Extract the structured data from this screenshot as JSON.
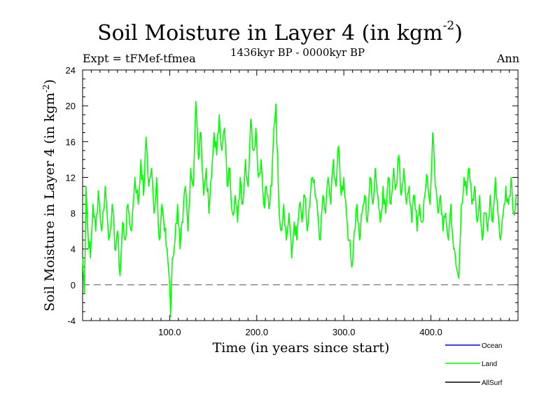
{
  "header": {
    "title": "Soil Moisture in Layer 4 (in kgm",
    "title_exp": "-2",
    "title_close": ")",
    "subtitle": "1436kyr BP - 0000kyr BP",
    "expt": "Expt = tFMef-tfmea",
    "season": "Ann"
  },
  "chart_data": {
    "type": "line",
    "title": "Soil Moisture in Layer 4 (in kgm-2)",
    "xlabel": "Time (in years since start)",
    "ylabel": "Soil Moisture in Layer 4 (in kgm",
    "ylabel_exp": "-2",
    "ylabel_close": ")",
    "xlim": [
      0,
      500
    ],
    "ylim": [
      -4,
      24
    ],
    "xticks": [
      100,
      200,
      300,
      400
    ],
    "xtick_labels": [
      "100.0",
      "200.0",
      "300.0",
      "400.0"
    ],
    "yticks": [
      -4,
      0,
      4,
      8,
      12,
      16,
      20,
      24
    ],
    "ytick_labels": [
      "-4",
      "0",
      "4",
      "8",
      "12",
      "16",
      "20",
      "24"
    ],
    "zero_line": 0,
    "series": [
      {
        "name": "Ocean",
        "color": "#0000ff",
        "values": []
      },
      {
        "name": "Land",
        "color": "#00ff00",
        "knots": [
          [
            0,
            3
          ],
          [
            2,
            -1
          ],
          [
            4,
            11
          ],
          [
            6,
            6
          ],
          [
            9,
            3
          ],
          [
            12,
            9
          ],
          [
            15,
            6
          ],
          [
            18,
            10.5
          ],
          [
            22,
            6
          ],
          [
            26,
            11
          ],
          [
            30,
            5
          ],
          [
            34,
            9
          ],
          [
            37,
            4
          ],
          [
            40,
            6
          ],
          [
            43,
            1
          ],
          [
            46,
            7
          ],
          [
            49,
            5
          ],
          [
            52,
            9
          ],
          [
            56,
            6
          ],
          [
            60,
            12
          ],
          [
            64,
            9
          ],
          [
            67,
            14
          ],
          [
            70,
            10
          ],
          [
            73,
            16.5
          ],
          [
            76,
            11
          ],
          [
            79,
            13
          ],
          [
            82,
            8
          ],
          [
            85,
            12
          ],
          [
            88,
            5
          ],
          [
            91,
            9
          ],
          [
            94,
            6
          ],
          [
            97,
            4
          ],
          [
            100,
            0
          ],
          [
            101,
            -3.6
          ],
          [
            103,
            3
          ],
          [
            106,
            5
          ],
          [
            109,
            9
          ],
          [
            112,
            4
          ],
          [
            115,
            7
          ],
          [
            118,
            11
          ],
          [
            121,
            6
          ],
          [
            124,
            13
          ],
          [
            127,
            11
          ],
          [
            130,
            20.5
          ],
          [
            133,
            14
          ],
          [
            136,
            17
          ],
          [
            139,
            10
          ],
          [
            142,
            13
          ],
          [
            145,
            8
          ],
          [
            148,
            12
          ],
          [
            151,
            17
          ],
          [
            154,
            14.5
          ],
          [
            157,
            19
          ],
          [
            160,
            15
          ],
          [
            163,
            17.5
          ],
          [
            166,
            11
          ],
          [
            169,
            13
          ],
          [
            172,
            8
          ],
          [
            175,
            10
          ],
          [
            178,
            7
          ],
          [
            181,
            12
          ],
          [
            184,
            9
          ],
          [
            187,
            14
          ],
          [
            190,
            11
          ],
          [
            193,
            18.5
          ],
          [
            196,
            15
          ],
          [
            199,
            17.5
          ],
          [
            202,
            12
          ],
          [
            205,
            14
          ],
          [
            208,
            9
          ],
          [
            211,
            11
          ],
          [
            214,
            8.5
          ],
          [
            217,
            11
          ],
          [
            220,
            18
          ],
          [
            222,
            20.2
          ],
          [
            225,
            10
          ],
          [
            228,
            6
          ],
          [
            231,
            9
          ],
          [
            234,
            5
          ],
          [
            237,
            8
          ],
          [
            240,
            3
          ],
          [
            243,
            7
          ],
          [
            246,
            5
          ],
          [
            249,
            9
          ],
          [
            252,
            7
          ],
          [
            255,
            10
          ],
          [
            258,
            6
          ],
          [
            261,
            9
          ],
          [
            264,
            12
          ],
          [
            267,
            10
          ],
          [
            270,
            8
          ],
          [
            273,
            5
          ],
          [
            276,
            10
          ],
          [
            279,
            8
          ],
          [
            282,
            12
          ],
          [
            285,
            9
          ],
          [
            288,
            14
          ],
          [
            291,
            11
          ],
          [
            294,
            15.5
          ],
          [
            297,
            10
          ],
          [
            300,
            12
          ],
          [
            303,
            8
          ],
          [
            306,
            5
          ],
          [
            309,
            2
          ],
          [
            312,
            6
          ],
          [
            315,
            9
          ],
          [
            318,
            5
          ],
          [
            321,
            8
          ],
          [
            324,
            10
          ],
          [
            327,
            7
          ],
          [
            330,
            12
          ],
          [
            333,
            9
          ],
          [
            336,
            13
          ],
          [
            339,
            10
          ],
          [
            342,
            7
          ],
          [
            345,
            11
          ],
          [
            348,
            8
          ],
          [
            351,
            12
          ],
          [
            354,
            9
          ],
          [
            357,
            13
          ],
          [
            360,
            11
          ],
          [
            363,
            14.5
          ],
          [
            366,
            10
          ],
          [
            369,
            13
          ],
          [
            372,
            9
          ],
          [
            375,
            11
          ],
          [
            378,
            7
          ],
          [
            381,
            10
          ],
          [
            384,
            6
          ],
          [
            387,
            9
          ],
          [
            390,
            7
          ],
          [
            393,
            10
          ],
          [
            396,
            12
          ],
          [
            399,
            9
          ],
          [
            402,
            17
          ],
          [
            405,
            11
          ],
          [
            408,
            8
          ],
          [
            411,
            10
          ],
          [
            414,
            6
          ],
          [
            417,
            8
          ],
          [
            420,
            5
          ],
          [
            423,
            9
          ],
          [
            426,
            4
          ],
          [
            429,
            2
          ],
          [
            432,
            0.7
          ],
          [
            435,
            9
          ],
          [
            438,
            12
          ],
          [
            441,
            10
          ],
          [
            444,
            13
          ],
          [
            447,
            9
          ],
          [
            450,
            11
          ],
          [
            453,
            7
          ],
          [
            456,
            10
          ],
          [
            459,
            5
          ],
          [
            462,
            8
          ],
          [
            465,
            6
          ],
          [
            468,
            10
          ],
          [
            471,
            7
          ],
          [
            474,
            12
          ],
          [
            477,
            8
          ],
          [
            480,
            5
          ],
          [
            483,
            8
          ],
          [
            486,
            11
          ],
          [
            489,
            9
          ],
          [
            492,
            12
          ],
          [
            495,
            8
          ],
          [
            498,
            10
          ]
        ]
      },
      {
        "name": "AllSurf",
        "color": "#000000",
        "values": []
      }
    ],
    "legend_position": "bottom-right"
  }
}
